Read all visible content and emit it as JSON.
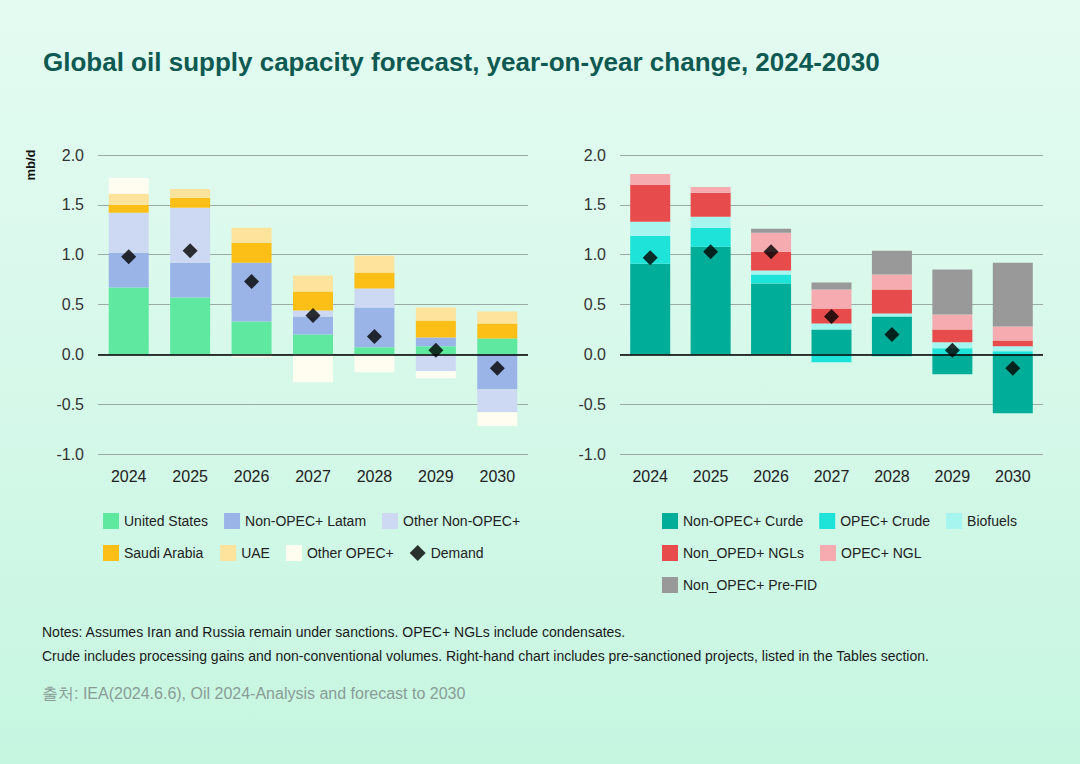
{
  "title": "Global oil supply capacity forecast, year-on-year change, 2024-2030",
  "notes": [
    "Notes: Assumes Iran and Russia remain under sanctions. OPEC+ NGLs include condensates.",
    "Crude includes processing gains and non-conventional volumes. Right-hand chart includes pre-sanctioned projects, listed in the Tables section."
  ],
  "source": "출처: IEA(2024.6.6), Oil 2024-Analysis and forecast to 2030",
  "chart_data": [
    {
      "type": "bar",
      "ylabel": "mb/d",
      "categories": [
        "2024",
        "2025",
        "2026",
        "2027",
        "2028",
        "2029",
        "2030"
      ],
      "stacked": true,
      "grid": true,
      "legend": "bottom",
      "ylim": [
        -1.0,
        2.0
      ],
      "yticks": [
        {
          "value": -1.0,
          "label": "-1.0"
        },
        {
          "value": -0.5,
          "label": "-0.5"
        },
        {
          "value": 0,
          "label": "0.0"
        },
        {
          "value": 0.5,
          "label": "0.5"
        },
        {
          "value": 1.0,
          "label": "1.0"
        },
        {
          "value": 1.5,
          "label": "1.5"
        },
        {
          "value": 2.0,
          "label": "2.0"
        }
      ],
      "series": [
        {
          "name": "United States",
          "color": "#5ee8a0",
          "values": [
            0.67,
            0.57,
            0.33,
            0.2,
            0.07,
            0.08,
            0.16
          ]
        },
        {
          "name": "Non-OPEC+ Latam",
          "color": "#9ab4e8",
          "values": [
            0.35,
            0.35,
            0.59,
            0.18,
            0.4,
            0.09,
            -0.35
          ]
        },
        {
          "name": "Other Non-OPEC+",
          "color": "#cdd9f2",
          "values": [
            0.4,
            0.55,
            0,
            0.06,
            0.19,
            -0.17,
            -0.23
          ]
        },
        {
          "name": "Saudi Arabia",
          "color": "#fbbf17",
          "values": [
            0.08,
            0.1,
            0.2,
            0.19,
            0.16,
            0.17,
            0.15
          ]
        },
        {
          "name": "UAE",
          "color": "#fde39c",
          "values": [
            0.11,
            0.09,
            0.15,
            0.16,
            0.17,
            0.13,
            0.12
          ]
        },
        {
          "name": "Other OPEC+",
          "color": "#fffcf0",
          "values": [
            0.16,
            0,
            -0.03,
            -0.28,
            -0.18,
            -0.07,
            -0.14
          ]
        },
        {
          "name": "Demand",
          "type": "scatter",
          "marker": "diamond",
          "color": "#000000",
          "values": [
            0.98,
            1.04,
            0.73,
            0.39,
            0.18,
            0.04,
            -0.14
          ]
        }
      ]
    },
    {
      "type": "bar",
      "categories": [
        "2024",
        "2025",
        "2026",
        "2027",
        "2028",
        "2029",
        "2030"
      ],
      "stacked": true,
      "grid": true,
      "legend": "bottom",
      "ylim": [
        -1.0,
        2.0
      ],
      "yticks": [
        {
          "value": -1.0,
          "label": "-1.0"
        },
        {
          "value": -0.5,
          "label": "-0.5"
        },
        {
          "value": 0,
          "label": "0.0"
        },
        {
          "value": 0.5,
          "label": "0.5"
        },
        {
          "value": 1.0,
          "label": "1.0"
        },
        {
          "value": 1.5,
          "label": "1.5"
        },
        {
          "value": 2.0,
          "label": "2.0"
        }
      ],
      "series": [
        {
          "name": "Non-OPEC+ Curde",
          "color": "#00ad98",
          "values": [
            0.91,
            1.08,
            0.71,
            0.25,
            0.38,
            -0.2,
            -0.59
          ]
        },
        {
          "name": "OPEC+ Crude",
          "color": "#1de3d8",
          "values": [
            0.28,
            0.19,
            0.09,
            -0.08,
            -0.02,
            0.06,
            0.03
          ]
        },
        {
          "name": "Biofuels",
          "color": "#a6f6ef",
          "values": [
            0.14,
            0.11,
            0.04,
            0.06,
            0.03,
            0.06,
            0.05
          ]
        },
        {
          "name": "Non_OPED+ NGLs",
          "color": "#e84b4b",
          "values": [
            0.37,
            0.24,
            0.19,
            0.15,
            0.24,
            0.13,
            0.06
          ]
        },
        {
          "name": "OPEC+ NGL",
          "color": "#f5abaf",
          "values": [
            0.11,
            0.06,
            0.19,
            0.19,
            0.15,
            0.15,
            0.14
          ]
        },
        {
          "name": "Non_OPEC+ Pre-FID",
          "color": "#999999",
          "values": [
            0,
            0,
            0.04,
            0.07,
            0.24,
            0.45,
            0.64
          ]
        },
        {
          "type": "scatter",
          "marker": "diamond",
          "color": "#000000",
          "values": [
            0.97,
            1.03,
            1.03,
            0.38,
            0.2,
            0.04,
            -0.14
          ]
        }
      ]
    }
  ]
}
